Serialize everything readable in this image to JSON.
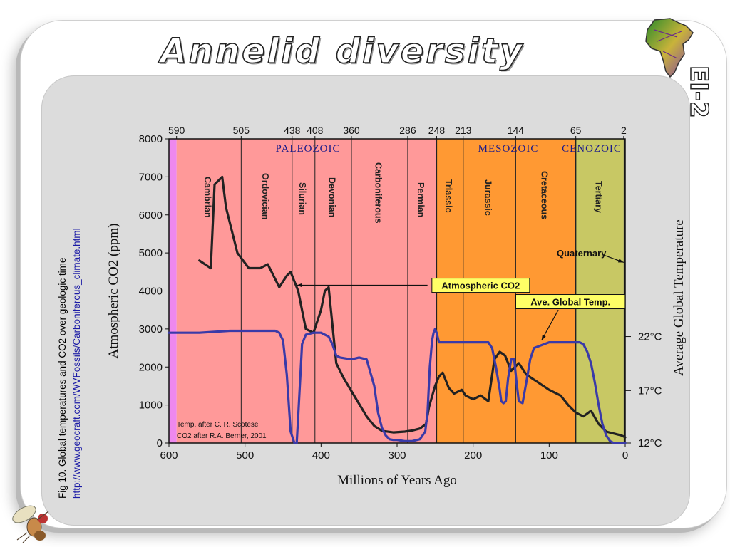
{
  "slide": {
    "title": "Annelid diversity",
    "code": "EI-2",
    "caption_line1": "Fig 10. Global temperatures and CO2 over geologic time",
    "caption_url": "http://www.geocraft.com/WVFossils/Carboniferous_climate.html"
  },
  "icons": {
    "top_right": "africa-map-logo",
    "bottom_left": "fruit-fly-logo"
  },
  "chart_data": {
    "type": "line",
    "xlabel": "Millions of Years Ago",
    "ylabel": "Atmospheric CO2 (ppm)",
    "y2label": "Average Global Temperature",
    "xlim": [
      600,
      0
    ],
    "ylim": [
      0,
      8000
    ],
    "x_ticks": [
      600,
      500,
      400,
      300,
      200,
      100,
      0
    ],
    "y_ticks": [
      0,
      1000,
      2000,
      3000,
      4000,
      5000,
      6000,
      7000,
      8000
    ],
    "y2_ticks": [
      {
        "label": "22°C",
        "y": 2800
      },
      {
        "label": "17°C",
        "y": 1380
      },
      {
        "label": "12°C",
        "y": 0
      }
    ],
    "top_ticks": [
      "590",
      "505",
      "438",
      "408",
      "360",
      "286",
      "248",
      "213",
      "144",
      "65",
      "2"
    ],
    "top_tick_x": [
      590,
      505,
      438,
      408,
      360,
      286,
      248,
      213,
      144,
      65,
      2
    ],
    "eras": [
      {
        "label": "PALEOZOIC",
        "start": 590,
        "end": 248,
        "color": "#ff9999"
      },
      {
        "label": "MESOZOIC",
        "start": 248,
        "end": 65,
        "color": "#ff9933"
      },
      {
        "label": "CENOZOIC",
        "start": 65,
        "end": 2,
        "color": "#c8c864"
      }
    ],
    "periods": [
      {
        "label": "Cambrian",
        "start": 590,
        "end": 505
      },
      {
        "label": "Ordovician",
        "start": 505,
        "end": 438
      },
      {
        "label": "Silurian",
        "start": 438,
        "end": 408
      },
      {
        "label": "Devonian",
        "start": 408,
        "end": 360
      },
      {
        "label": "Carboniferous",
        "start": 360,
        "end": 286
      },
      {
        "label": "Permian",
        "start": 286,
        "end": 248
      },
      {
        "label": "Triassic",
        "start": 248,
        "end": 213
      },
      {
        "label": "Jurassic",
        "start": 213,
        "end": 144
      },
      {
        "label": "Cretaceous",
        "start": 144,
        "end": 65
      },
      {
        "label": "Tertiary",
        "start": 65,
        "end": 2
      }
    ],
    "precambrian_color": "#ee88ee",
    "series": [
      {
        "name": "Atmospheric CO2",
        "color": "#222222",
        "x": [
          560,
          545,
          540,
          530,
          525,
          510,
          495,
          480,
          470,
          455,
          445,
          440,
          430,
          420,
          410,
          400,
          395,
          390,
          380,
          370,
          355,
          340,
          330,
          320,
          305,
          290,
          280,
          270,
          262,
          258,
          250,
          245,
          240,
          232,
          225,
          215,
          210,
          200,
          190,
          180,
          172,
          165,
          158,
          150,
          140,
          130,
          115,
          100,
          85,
          75,
          65,
          55,
          45,
          35,
          25,
          15,
          5,
          0
        ],
        "y": [
          4800,
          4600,
          6800,
          7000,
          6200,
          5000,
          4600,
          4600,
          4700,
          4100,
          4400,
          4500,
          4000,
          3000,
          2900,
          3500,
          4000,
          4100,
          2100,
          1700,
          1200,
          700,
          450,
          320,
          280,
          300,
          330,
          380,
          500,
          950,
          1500,
          1750,
          1850,
          1450,
          1300,
          1400,
          1250,
          1150,
          1250,
          1100,
          2200,
          2400,
          2300,
          1900,
          2100,
          1800,
          1600,
          1400,
          1250,
          1000,
          800,
          700,
          850,
          500,
          300,
          250,
          200,
          150
        ]
      },
      {
        "name": "Ave. Global Temp.",
        "color": "#3a3aa8",
        "x": [
          600,
          560,
          520,
          480,
          460,
          455,
          450,
          445,
          440,
          435,
          432,
          430,
          425,
          420,
          410,
          400,
          395,
          390,
          385,
          380,
          375,
          360,
          350,
          340,
          330,
          325,
          320,
          315,
          310,
          305,
          300,
          290,
          280,
          270,
          263,
          260,
          257,
          254,
          252,
          250,
          248,
          245,
          240,
          230,
          220,
          200,
          190,
          180,
          175,
          170,
          165,
          163,
          160,
          157,
          154,
          150,
          146,
          143,
          140,
          135,
          130,
          125,
          120,
          100,
          80,
          70,
          60,
          55,
          50,
          45,
          40,
          35,
          30,
          25,
          20,
          15,
          10,
          5,
          2,
          0
        ],
        "y": [
          2900,
          2900,
          2950,
          2950,
          2950,
          2900,
          2700,
          1800,
          300,
          0,
          0,
          700,
          2600,
          2850,
          2900,
          2900,
          2850,
          2800,
          2600,
          2300,
          2250,
          2200,
          2250,
          2200,
          1500,
          800,
          400,
          200,
          100,
          80,
          80,
          50,
          50,
          100,
          300,
          800,
          2000,
          2700,
          2900,
          3000,
          2900,
          2650,
          2650,
          2650,
          2650,
          2650,
          2650,
          2650,
          2500,
          2000,
          1400,
          1100,
          1050,
          1100,
          1700,
          2200,
          2200,
          1600,
          1100,
          1050,
          1600,
          2200,
          2500,
          2650,
          2650,
          2650,
          2650,
          2600,
          2400,
          2100,
          1600,
          1000,
          500,
          200,
          50,
          0,
          0,
          0,
          0,
          0
        ]
      }
    ],
    "annotations": [
      {
        "label": "Atmospheric CO2",
        "box_x": 190,
        "box_y": 4130,
        "arrow_from": [
          260,
          4150
        ],
        "arrow_to": [
          432,
          4150
        ]
      },
      {
        "label": "Ave. Global Temp.",
        "box_x": 72,
        "box_y": 3700,
        "arrow_from": [
          88,
          3500
        ],
        "arrow_to": [
          110,
          2700
        ]
      },
      {
        "label": "Quaternary",
        "box_x": 90,
        "box_y": 5000,
        "arrow_from": [
          29,
          4950
        ],
        "arrow_to": [
          2,
          4750
        ]
      }
    ],
    "credit_lines": [
      "Temp. after C. R. Scotese",
      "CO2 after R.A. Berner, 2001"
    ]
  }
}
